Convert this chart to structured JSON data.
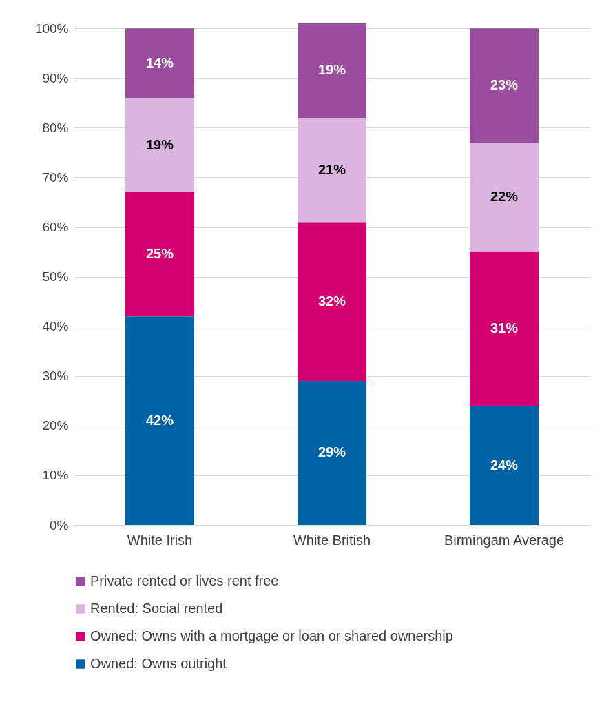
{
  "chart_data": {
    "type": "bar",
    "stacked": true,
    "categories": [
      "White Irish",
      "White British",
      "Birmingam Average"
    ],
    "series": [
      {
        "name": "Owned: Owns outright",
        "color": "#0063a6",
        "values": [
          42,
          29,
          24
        ],
        "value_labels": [
          "42%",
          "29%",
          "24%"
        ]
      },
      {
        "name": "Owned: Owns with a mortgage or loan or shared ownership",
        "color": "#d4006f",
        "values": [
          25,
          32,
          31
        ],
        "value_labels": [
          "25%",
          "32%",
          "31%"
        ]
      },
      {
        "name": "Rented: Social rented",
        "color": "#dbb4df",
        "values": [
          19,
          21,
          22
        ],
        "value_labels": [
          "19%",
          "21%",
          "22%"
        ]
      },
      {
        "name": "Private rented or lives rent free",
        "color": "#9a4c9e",
        "values": [
          14,
          19,
          23
        ],
        "value_labels": [
          "14%",
          "19%",
          "23%"
        ]
      }
    ],
    "ylim": [
      0,
      101
    ],
    "yticks": [
      {
        "value": 0,
        "label": "0%"
      },
      {
        "value": 10,
        "label": "10%"
      },
      {
        "value": 20,
        "label": "20%"
      },
      {
        "value": 30,
        "label": "30%"
      },
      {
        "value": 40,
        "label": "40%"
      },
      {
        "value": 50,
        "label": "50%"
      },
      {
        "value": 60,
        "label": "60%"
      },
      {
        "value": 70,
        "label": "70%"
      },
      {
        "value": 80,
        "label": "80%"
      },
      {
        "value": 90,
        "label": "90%"
      },
      {
        "value": 100,
        "label": "100%"
      }
    ],
    "grid": "y",
    "legend": "bottom"
  }
}
